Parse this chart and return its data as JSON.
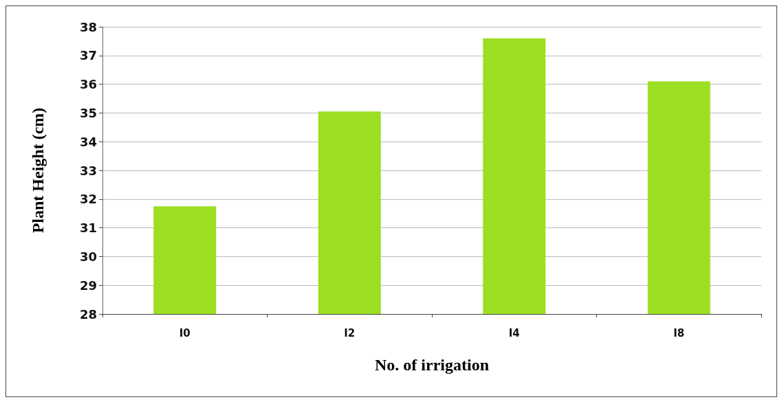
{
  "chart_data": {
    "type": "bar",
    "xlabel": "No. of irrigation",
    "ylabel": "Plant Height (cm)",
    "categories": [
      "I0",
      "I2",
      "I4",
      "I8"
    ],
    "values": [
      31.75,
      35.05,
      37.6,
      36.1
    ],
    "color": "#9ddf22",
    "ylim": [
      28,
      38
    ],
    "yticks": [
      28,
      29,
      30,
      31,
      32,
      33,
      34,
      35,
      36,
      37,
      38
    ],
    "grid": "y"
  }
}
